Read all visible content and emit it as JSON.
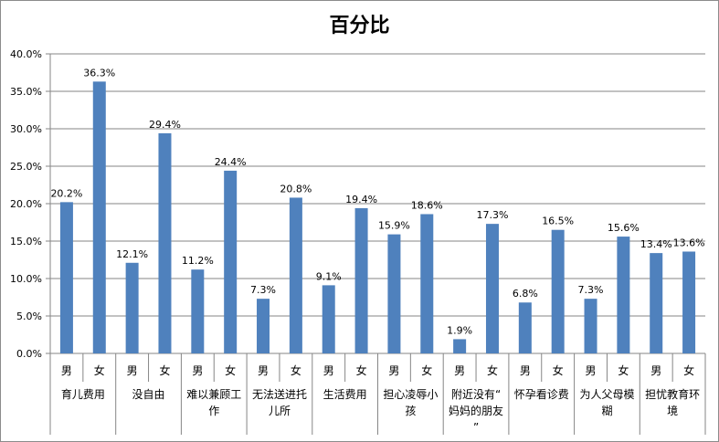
{
  "chart_data": {
    "type": "bar",
    "title": "百分比",
    "ylim": [
      0,
      40
    ],
    "yticks": [
      "0.0%",
      "5.0%",
      "10.0%",
      "15.0%",
      "20.0%",
      "25.0%",
      "30.0%",
      "35.0%",
      "40.0%"
    ],
    "grid": true,
    "bar_color": "#4f81bd",
    "groups": [
      {
        "label": "育儿费用",
        "categories": [
          "男",
          "女"
        ],
        "values": [
          20.2,
          36.3
        ],
        "data_labels": [
          "20.2%",
          "36.3%"
        ]
      },
      {
        "label": "没自由",
        "categories": [
          "男",
          "女"
        ],
        "values": [
          12.1,
          29.4
        ],
        "data_labels": [
          "12.1%",
          "29.4%"
        ]
      },
      {
        "label": "难以兼顾工作",
        "categories": [
          "男",
          "女"
        ],
        "values": [
          11.2,
          24.4
        ],
        "data_labels": [
          "11.2%",
          "24.4%"
        ]
      },
      {
        "label": "无法送进托儿所",
        "categories": [
          "男",
          "女"
        ],
        "values": [
          7.3,
          20.8
        ],
        "data_labels": [
          "7.3%",
          "20.8%"
        ]
      },
      {
        "label": "生活费用",
        "categories": [
          "男",
          "女"
        ],
        "values": [
          9.1,
          19.4
        ],
        "data_labels": [
          "9.1%",
          "19.4%"
        ]
      },
      {
        "label": "担心凌辱小孩",
        "categories": [
          "男",
          "女"
        ],
        "values": [
          15.9,
          18.6
        ],
        "data_labels": [
          "15.9%",
          "18.6%"
        ]
      },
      {
        "label": "附近没有“妈妈的朋友”",
        "categories": [
          "男",
          "女"
        ],
        "values": [
          1.9,
          17.3
        ],
        "data_labels": [
          "1.9%",
          "17.3%"
        ]
      },
      {
        "label": "怀孕看诊费",
        "categories": [
          "男",
          "女"
        ],
        "values": [
          6.8,
          16.5
        ],
        "data_labels": [
          "6.8%",
          "16.5%"
        ]
      },
      {
        "label": "为人父母模糊",
        "categories": [
          "男",
          "女"
        ],
        "values": [
          7.3,
          15.6
        ],
        "data_labels": [
          "7.3%",
          "15.6%"
        ]
      },
      {
        "label": "担忧教育环境",
        "categories": [
          "男",
          "女"
        ],
        "values": [
          13.4,
          13.6
        ],
        "data_labels": [
          "13.4%",
          "13.6%"
        ]
      }
    ]
  }
}
